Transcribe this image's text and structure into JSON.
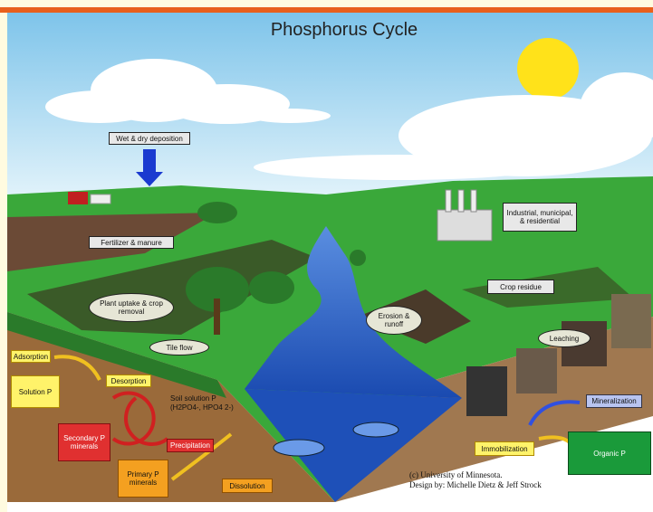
{
  "title": "Phosphorus Cycle",
  "surface_labels": {
    "deposition": "Wet & dry deposition",
    "fertilizer": "Fertilizer & manure",
    "industrial": "Industrial, municipal, & residential",
    "plant_uptake": "Plant uptake & crop removal",
    "tile_flow": "Tile flow",
    "crop_residue": "Crop residue",
    "erosion": "Erosion & runoff",
    "leaching": "Leaching"
  },
  "soil_labels": {
    "adsorption": "Adsorption",
    "desorption": "Desorption",
    "solution": "Solution P",
    "soil_solution": "Soil solution P (H2PO4-, HPO4 2-)",
    "secondary": "Secondary P minerals",
    "precipitation": "Precipitation",
    "primary": "Primary P minerals",
    "dissolution": "Dissolution",
    "mineralization": "Mineralization",
    "immobilization": "Immobilization",
    "organic": "Organic P"
  },
  "credit": [
    "(c) University of Minnesota.",
    "Design by: Michelle Dietz & Jeff Strock"
  ]
}
